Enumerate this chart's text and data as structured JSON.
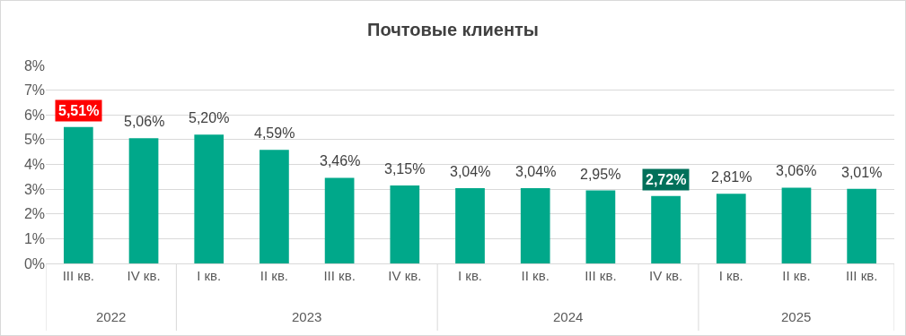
{
  "chart_data": {
    "type": "bar",
    "title": "Почтовые клиенты",
    "categories": [
      "III кв.",
      "IV кв.",
      "I кв.",
      "II кв.",
      "III кв.",
      "IV кв.",
      "I кв.",
      "II кв.",
      "III кв.",
      "IV кв.",
      "I кв.",
      "II кв.",
      "III кв."
    ],
    "values": [
      5.51,
      5.06,
      5.2,
      4.59,
      3.46,
      3.15,
      3.04,
      3.04,
      2.95,
      2.72,
      2.81,
      3.06,
      3.01
    ],
    "value_labels": [
      "5,51%",
      "5,06%",
      "5,20%",
      "4,59%",
      "3,46%",
      "3,15%",
      "3,04%",
      "3,04%",
      "2,95%",
      "2,72%",
      "2,81%",
      "3,06%",
      "3,01%"
    ],
    "color": "#00a88a",
    "ylim": [
      0,
      8
    ],
    "yticks": [
      {
        "value": 0,
        "label": "0%"
      },
      {
        "value": 1,
        "label": "1%"
      },
      {
        "value": 2,
        "label": "2%"
      },
      {
        "value": 3,
        "label": "3%"
      },
      {
        "value": 4,
        "label": "4%"
      },
      {
        "value": 5,
        "label": "5%"
      },
      {
        "value": 6,
        "label": "6%"
      },
      {
        "value": 7,
        "label": "7%"
      },
      {
        "value": 8,
        "label": "8%"
      }
    ],
    "grid": "y",
    "annotations": [
      "2022",
      "2023",
      "2024",
      "2025"
    ]
  }
}
